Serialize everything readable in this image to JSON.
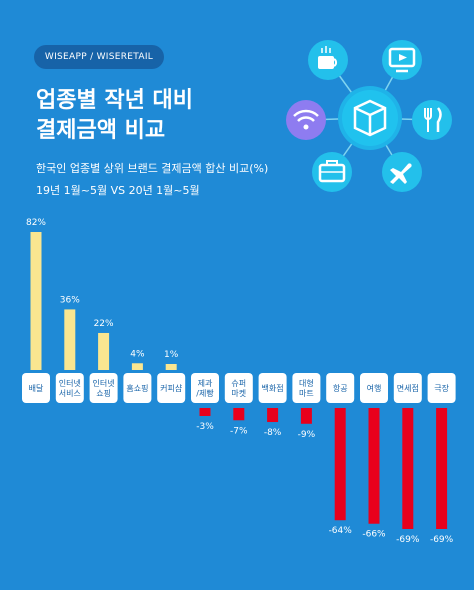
{
  "header": {
    "brand": "WISEAPP / WISERETAIL",
    "title_line1": "업종별 작년 대비",
    "title_line2": "결제금액 비교",
    "subtitle_line1": "한국인 업종별 상위 브랜드 결제금액 합산 비교(%)",
    "subtitle_line2": "19년 1월~5월 VS 20년 1월~5월"
  },
  "icons": [
    "coffee-icon",
    "tv-icon",
    "wifi-icon",
    "box-icon",
    "restaurant-icon",
    "luggage-icon",
    "airplane-icon"
  ],
  "chart_data": {
    "type": "bar",
    "title": "업종별 작년 대비 결제금액 비교",
    "categories": [
      [
        "배달"
      ],
      [
        "인터넷",
        "서비스"
      ],
      [
        "인터넷",
        "쇼핑"
      ],
      [
        "홈쇼핑"
      ],
      [
        "커피샵"
      ],
      [
        "제과",
        "/제빵"
      ],
      [
        "슈퍼",
        "마켓"
      ],
      [
        "백화점"
      ],
      [
        "대형",
        "마트"
      ],
      [
        "항공"
      ],
      [
        "여행"
      ],
      [
        "면세점"
      ],
      [
        "극장"
      ]
    ],
    "values": [
      82,
      36,
      22,
      4,
      1,
      -3,
      -7,
      -8,
      -9,
      -64,
      -66,
      -69,
      -69
    ],
    "value_labels": [
      "82%",
      "36%",
      "22%",
      "4%",
      "1%",
      "-3%",
      "-7%",
      "-8%",
      "-9%",
      "-64%",
      "-66%",
      "-69%",
      "-69%"
    ],
    "colors": {
      "positive": "#FAE690",
      "negative": "#E8001C",
      "label_box": "#FFFFFF",
      "label_text": "#1763A8"
    }
  }
}
